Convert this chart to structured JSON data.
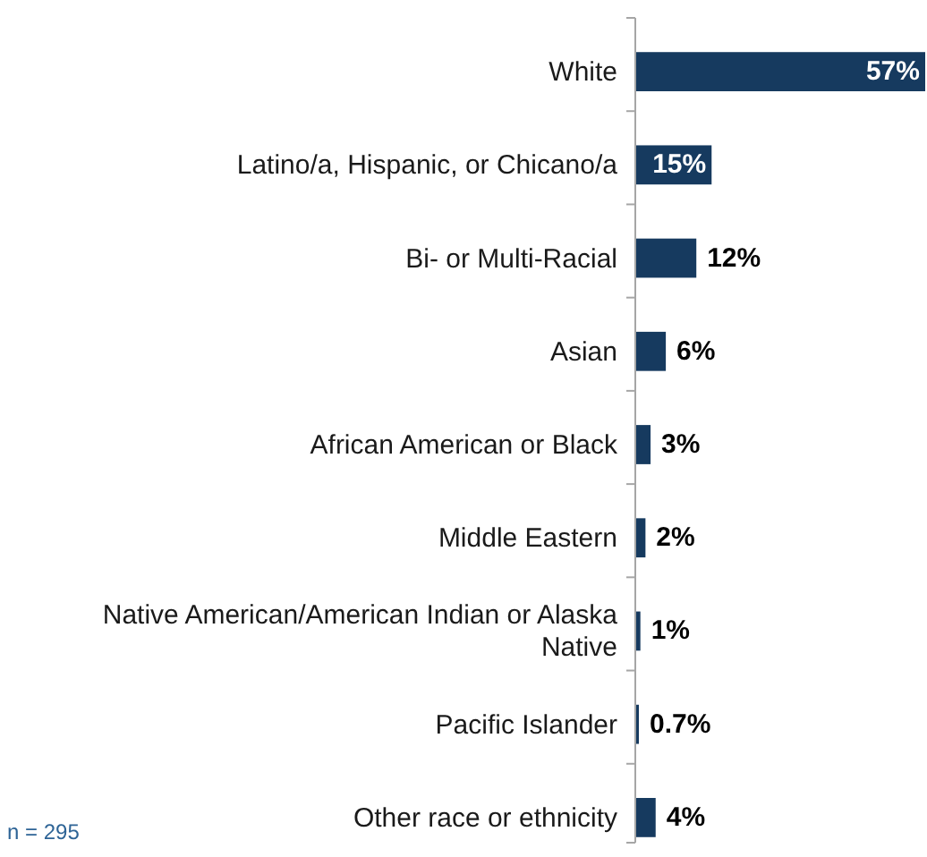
{
  "chart_data": {
    "type": "bar",
    "orientation": "horizontal",
    "categories": [
      "White",
      "Latino/a, Hispanic, or Chicano/a",
      "Bi- or Multi-Racial",
      "Asian",
      "African American or Black",
      "Middle Eastern",
      "Native American/American Indian or Alaska Native",
      "Pacific Islander",
      "Other race or ethnicity"
    ],
    "values": [
      57,
      15,
      12,
      6,
      3,
      2,
      1,
      0.7,
      4
    ],
    "value_labels": [
      "57%",
      "15%",
      "12%",
      "6%",
      "3%",
      "2%",
      "1%",
      "0.7%",
      "4%"
    ],
    "color": "#163a5f",
    "annotations": [
      "n = 295"
    ]
  }
}
